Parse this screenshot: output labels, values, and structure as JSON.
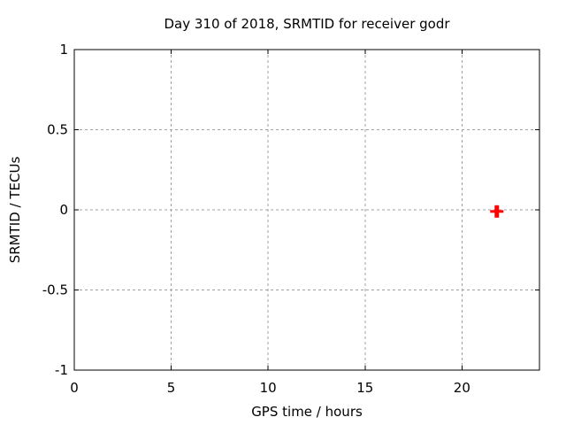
{
  "chart_data": {
    "type": "scatter",
    "title": "Day 310 of 2018, SRMTID for receiver godr",
    "xlabel": "GPS time / hours",
    "ylabel": "SRMTID / TECUs",
    "xlim": [
      0,
      24
    ],
    "ylim": [
      -1,
      1
    ],
    "xticks": [
      0,
      5,
      10,
      15,
      20
    ],
    "yticks": [
      -1,
      -0.5,
      0,
      0.5,
      1
    ],
    "grid": true,
    "grid_style": "dashed",
    "legend": "none",
    "series": [
      {
        "marker": "plus",
        "color": "#ff0000",
        "points": [
          {
            "x": 21.8,
            "y": -0.01
          }
        ]
      }
    ],
    "colors": {
      "background": "#ffffff",
      "text": "#000000",
      "axis": "#000000",
      "grid": "#a0a0a0",
      "marker": "#ff0000"
    }
  }
}
